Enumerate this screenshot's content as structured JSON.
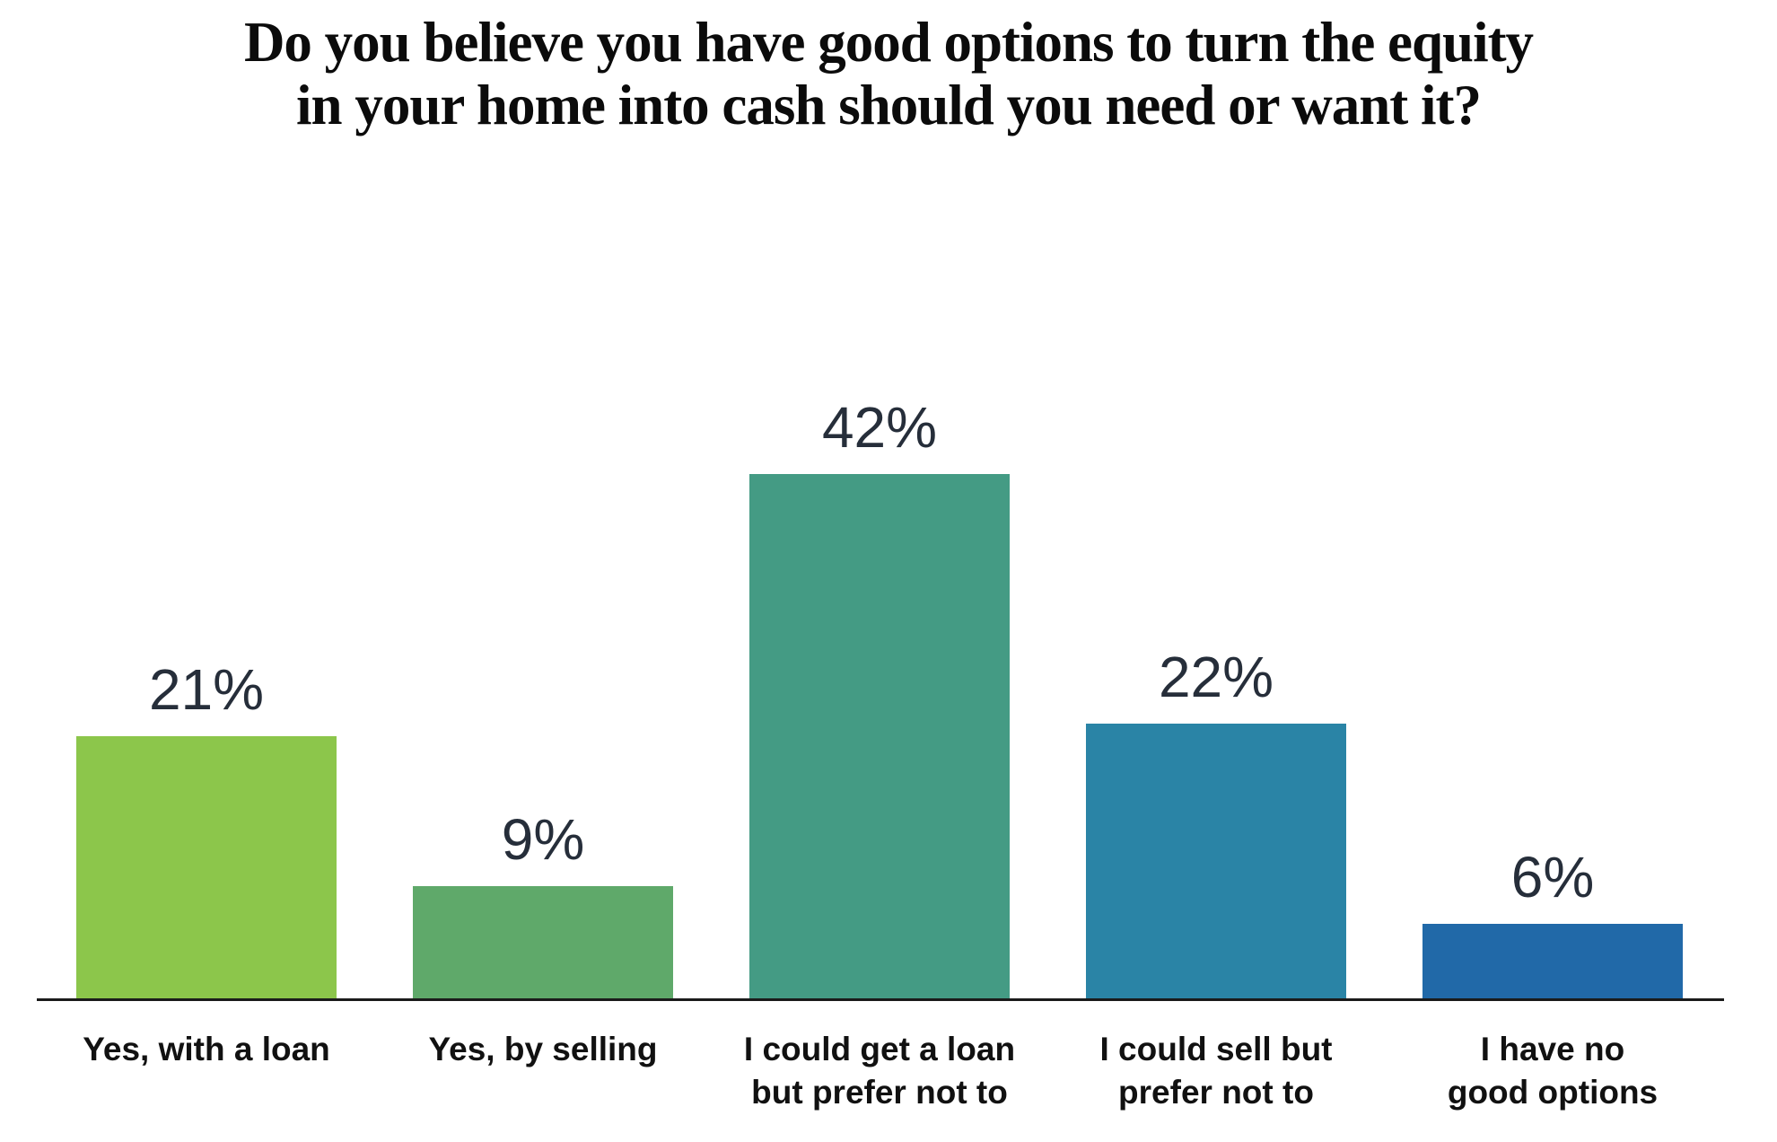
{
  "title": "Do you believe you have good options to turn the equity\nin your home into cash should you need or want it?",
  "chart_data": {
    "type": "bar",
    "title": "Do you believe you have good options to turn the equity in your home into cash should you need or want it?",
    "categories": [
      "Yes, with a loan",
      "Yes, by selling",
      "I could get a loan but prefer not to",
      "I could sell but prefer not to",
      "I have no good options"
    ],
    "values": [
      21,
      9,
      42,
      22,
      6
    ],
    "unit": "%",
    "value_labels": [
      "21%",
      "9%",
      "42%",
      "22%",
      "6%"
    ],
    "category_label_lines": [
      "Yes, with a loan",
      "Yes, by selling",
      "I could get a loan\nbut prefer not to",
      "I could sell but\nprefer not to",
      "I have no\ngood options"
    ],
    "colors": [
      "#8CC64B",
      "#5FA96A",
      "#449B84",
      "#2A84A6",
      "#2169A8"
    ],
    "value_label_color": "#262E3A",
    "axis_line_color": "#1A1A1A",
    "xlabel": "",
    "ylabel": "",
    "ylim": [
      0,
      45
    ],
    "grid": false,
    "legend": false,
    "value_labels_position": "above-bars"
  }
}
